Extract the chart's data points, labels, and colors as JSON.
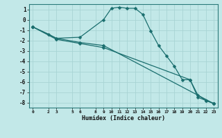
{
  "xlabel": "Humidex (Indice chaleur)",
  "bg_color": "#c2e8e8",
  "grid_color": "#a8d4d4",
  "line_color": "#1a6e6e",
  "xlim": [
    -0.5,
    23.5
  ],
  "ylim": [
    -8.5,
    1.5
  ],
  "xticks": [
    0,
    2,
    3,
    5,
    6,
    8,
    9,
    10,
    11,
    12,
    13,
    14,
    15,
    16,
    17,
    18,
    19,
    20,
    21,
    22,
    23
  ],
  "yticks": [
    1,
    0,
    -1,
    -2,
    -3,
    -4,
    -5,
    -6,
    -7,
    -8
  ],
  "line1_x": [
    0,
    2,
    3,
    6,
    9,
    10,
    11,
    12,
    13,
    14,
    15,
    16,
    17,
    18,
    19,
    20,
    21,
    22,
    23
  ],
  "line1_y": [
    -0.7,
    -1.4,
    -1.8,
    -1.7,
    0.0,
    1.1,
    1.2,
    1.1,
    1.1,
    0.5,
    -1.1,
    -2.5,
    -3.5,
    -4.5,
    -5.8,
    -5.8,
    -7.5,
    -7.8,
    -8.1
  ],
  "line2_x": [
    0,
    3,
    6,
    9,
    23
  ],
  "line2_y": [
    -0.7,
    -1.8,
    -2.2,
    -2.5,
    -8.1
  ],
  "line3_x": [
    0,
    3,
    6,
    9,
    20,
    21,
    22,
    23
  ],
  "line3_y": [
    -0.7,
    -1.9,
    -2.3,
    -2.7,
    -5.8,
    -7.3,
    -7.8,
    -8.1
  ]
}
